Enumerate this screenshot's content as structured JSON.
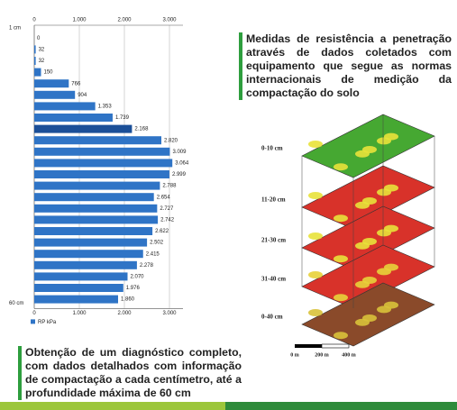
{
  "chart_data": {
    "type": "bar",
    "orientation": "horizontal",
    "categories": [
      "1 cm",
      null,
      null,
      null,
      null,
      null,
      null,
      null,
      null,
      null,
      null,
      null,
      null,
      null,
      null,
      null,
      null,
      null,
      null,
      null,
      null,
      null,
      null,
      "60 cm"
    ],
    "values": [
      0,
      32,
      32,
      150,
      766,
      904,
      1353,
      1739,
      2168,
      2820,
      3009,
      3064,
      2999,
      2788,
      2654,
      2727,
      2742,
      2622,
      2502,
      2415,
      2278,
      2070,
      1976,
      1860
    ],
    "value_labels": [
      "0",
      "32",
      "32",
      "150",
      "766",
      "904",
      "1.353",
      "1.739",
      "2.168",
      "2.820",
      "3.009",
      "3.064",
      "2.999",
      "2.788",
      "2.654",
      "2.727",
      "2.742",
      "2.622",
      "2.502",
      "2.415",
      "2.278",
      "2.070",
      "1.976",
      "1.860"
    ],
    "colors": [
      "#2f74c6",
      "#2f74c6",
      "#2f74c6",
      "#2f74c6",
      "#2f74c6",
      "#2f74c6",
      "#2f74c6",
      "#2f74c6",
      "#1b4f98",
      "#2f74c6",
      "#2f74c6",
      "#2f74c6",
      "#2f74c6",
      "#2f74c6",
      "#2f74c6",
      "#2f74c6",
      "#2f74c6",
      "#2f74c6",
      "#2f74c6",
      "#2f74c6",
      "#2f74c6",
      "#2f74c6",
      "#2f74c6",
      "#2f74c6"
    ],
    "legend": "RP kPa",
    "xlim": [
      0,
      3300
    ],
    "xticks": [
      0,
      {
        "value": 1000,
        "label": "1.000"
      },
      {
        "value": 2000,
        "label": "2.000"
      },
      {
        "value": 3000,
        "label": "3.000"
      }
    ],
    "grid": true
  },
  "map": {
    "title": "Medidas de resistência a penetração através de dados coletados com equipamento que segue as normas internacionais de medição da compactação do solo",
    "layers": [
      "0-10 cm",
      "11-20 cm",
      "21-30 cm",
      "31-40 cm",
      "0-40 cm"
    ],
    "scale": [
      "0 m",
      "200 m",
      "400 m"
    ]
  },
  "caption": "Obtenção de um diagnóstico completo, com dados detalhados com informação de compactação a cada centímetro, até a profundidade máxima de 60 cm"
}
